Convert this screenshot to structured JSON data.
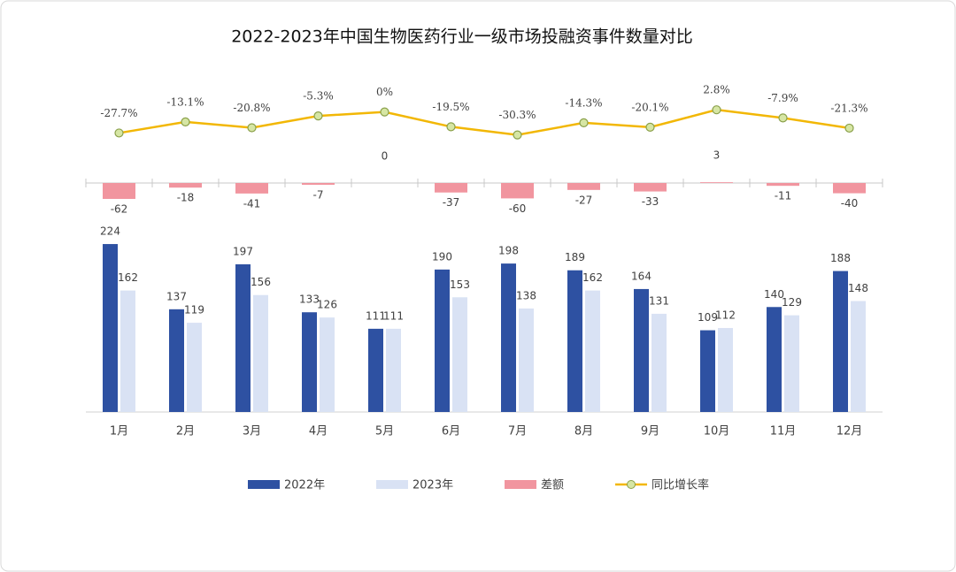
{
  "chart_data": [
    {
      "type": "line",
      "title": "2022-2023年中国生物医药行业一级市场投融资事件数量对比",
      "series": [
        {
          "name": "同比增长率",
          "color": "#f2b705",
          "values": [
            -27.7,
            -13.1,
            -20.8,
            -5.3,
            0,
            -19.5,
            -30.3,
            -14.3,
            -20.1,
            2.8,
            -7.9,
            -21.3
          ],
          "value_labels": [
            "-27.7%",
            "-13.1%",
            "-20.8%",
            "-5.3%",
            "0%",
            "-19.5%",
            "-30.3%",
            "-14.3%",
            "-20.1%",
            "2.8%",
            "-7.9%",
            "-21.3%"
          ]
        }
      ],
      "ylim": [
        -40,
        10
      ]
    },
    {
      "type": "bar",
      "series": [
        {
          "name": "差额",
          "color": "#f1959f",
          "values": [
            -62,
            -18,
            -41,
            -7,
            0,
            -37,
            -60,
            -27,
            -33,
            3,
            -11,
            -40
          ]
        }
      ],
      "ylim": [
        -100,
        100
      ]
    },
    {
      "type": "bar",
      "categories": [
        "1月",
        "2月",
        "3月",
        "4月",
        "5月",
        "6月",
        "7月",
        "8月",
        "9月",
        "10月",
        "11月",
        "12月"
      ],
      "series": [
        {
          "name": "2022年",
          "color": "#2e51a2",
          "values": [
            224,
            137,
            197,
            133,
            111,
            190,
            198,
            189,
            164,
            109,
            140,
            188
          ]
        },
        {
          "name": "2023年",
          "color": "#d9e2f4",
          "values": [
            162,
            119,
            156,
            126,
            111,
            153,
            138,
            162,
            131,
            112,
            129,
            148
          ]
        }
      ],
      "ylim": [
        0,
        250
      ]
    }
  ]
}
